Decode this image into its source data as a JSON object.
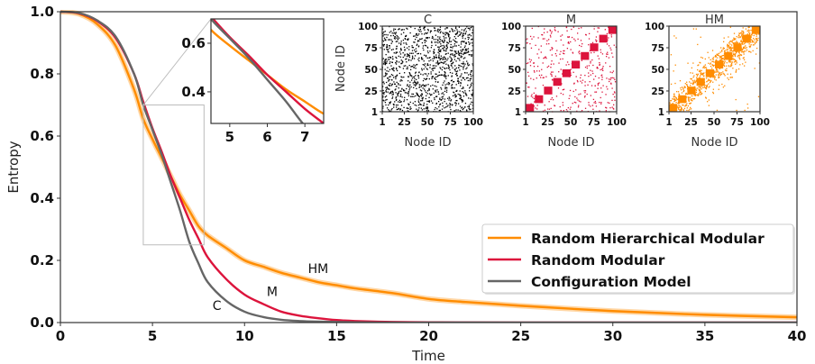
{
  "chart_data": [
    {
      "type": "line",
      "xlabel": "Time",
      "ylabel": "Entropy",
      "xlim": [
        0,
        40
      ],
      "ylim": [
        0,
        1
      ],
      "xticks": [
        "0",
        "5",
        "10",
        "15",
        "20",
        "25",
        "30",
        "35",
        "40"
      ],
      "yticks": [
        "0.0",
        "0.2",
        "0.4",
        "0.6",
        "0.8",
        "1.0"
      ],
      "grid": false,
      "legend_position": "center-right",
      "series": [
        {
          "name": "Random Hierarchical Modular",
          "label": "HM",
          "color": "#ff8c00",
          "band": true,
          "x": [
            0,
            1,
            2,
            3,
            4,
            4.5,
            5,
            5.5,
            6,
            6.5,
            7,
            7.5,
            8,
            9,
            10,
            11,
            12,
            13,
            14,
            15,
            16,
            18,
            20,
            22,
            25,
            30,
            35,
            40
          ],
          "y": [
            1.0,
            0.993,
            0.96,
            0.89,
            0.75,
            0.655,
            0.59,
            0.53,
            0.47,
            0.41,
            0.36,
            0.31,
            0.28,
            0.24,
            0.2,
            0.18,
            0.16,
            0.145,
            0.13,
            0.12,
            0.11,
            0.095,
            0.076,
            0.066,
            0.054,
            0.037,
            0.025,
            0.017
          ]
        },
        {
          "name": "Random Modular",
          "label": "M",
          "color": "#dc143c",
          "band": false,
          "x": [
            0,
            1,
            2,
            3,
            4,
            4.5,
            5,
            5.5,
            6,
            6.5,
            7,
            7.5,
            8,
            9,
            10,
            11,
            12,
            13,
            14,
            15,
            16,
            18,
            20,
            22,
            25,
            30,
            35,
            40
          ],
          "y": [
            1.0,
            0.995,
            0.97,
            0.915,
            0.8,
            0.71,
            0.625,
            0.55,
            0.47,
            0.4,
            0.33,
            0.27,
            0.21,
            0.14,
            0.09,
            0.06,
            0.035,
            0.022,
            0.014,
            0.008,
            0.005,
            0.002,
            0.001,
            0.0005,
            0,
            0,
            0,
            0
          ]
        },
        {
          "name": "Configuration Model",
          "label": "C",
          "color": "#666666",
          "band": false,
          "x": [
            0,
            1,
            2,
            3,
            4,
            4.5,
            5,
            5.5,
            6,
            6.5,
            7,
            7.5,
            8,
            9,
            10,
            11,
            12,
            13,
            14,
            15,
            16,
            18,
            20,
            22,
            25,
            30,
            35,
            40
          ],
          "y": [
            1.0,
            0.996,
            0.972,
            0.92,
            0.8,
            0.7,
            0.62,
            0.54,
            0.45,
            0.36,
            0.26,
            0.19,
            0.13,
            0.07,
            0.035,
            0.018,
            0.009,
            0.005,
            0.003,
            0.002,
            0.001,
            0,
            0,
            0,
            0,
            0,
            0,
            0
          ]
        }
      ],
      "annotations": [
        {
          "text": "HM",
          "x": 14.0,
          "y": 0.16
        },
        {
          "text": "M",
          "x": 11.5,
          "y": 0.085
        },
        {
          "text": "C",
          "x": 8.5,
          "y": 0.04
        }
      ]
    },
    {
      "type": "line",
      "role": "zoom-inset",
      "xlim": [
        4.5,
        7.5
      ],
      "ylim": [
        0.27,
        0.7
      ],
      "xticks": [
        "5",
        "6",
        "7"
      ],
      "yticks": [
        "0.4",
        "0.6"
      ]
    },
    {
      "type": "heatmap",
      "panels": [
        {
          "title": "C",
          "color": "#000000",
          "structure": "random"
        },
        {
          "title": "M",
          "color": "#dc143c",
          "structure": "modular"
        },
        {
          "title": "HM",
          "color": "#ff8c00",
          "structure": "hierarchical-modular"
        }
      ],
      "xlabel": "Node ID",
      "ylabel": "Node ID",
      "ticks": [
        "1",
        "25",
        "50",
        "75",
        "100"
      ],
      "range": [
        1,
        100
      ]
    }
  ]
}
